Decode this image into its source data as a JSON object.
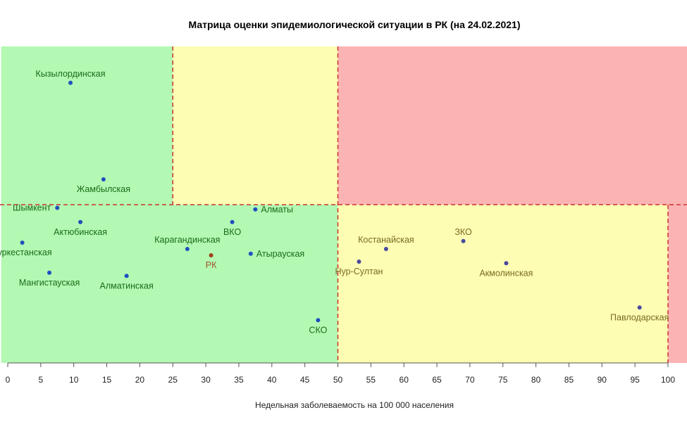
{
  "chart_data": {
    "type": "scatter",
    "title": "Матрица оценки эпидемиологической ситуации в РК (на 24.02.2021)",
    "xlabel": "Недельная заболеваемость на 100 000 населения",
    "ylabel": "",
    "xlim": [
      -1,
      103
    ],
    "ylim": [
      0,
      1
    ],
    "x_ticks": [
      "0",
      "5",
      "10",
      "15",
      "20",
      "25",
      "30",
      "35",
      "40",
      "45",
      "50",
      "55",
      "60",
      "65",
      "70",
      "75",
      "80",
      "85",
      "90",
      "95",
      "100"
    ],
    "grid": false,
    "x_thresholds": [
      25,
      50,
      100
    ],
    "y_threshold": 0.5,
    "zone_colors": {
      "green": "#b3f9b3",
      "yellow": "#fdfdb3",
      "red": "#fbb3b3",
      "threshold_line": "#cc3333"
    },
    "zones": [
      {
        "color": "green",
        "x": [
          -1,
          25
        ],
        "y": [
          0.5,
          1
        ]
      },
      {
        "color": "yellow",
        "x": [
          25,
          50
        ],
        "y": [
          0.5,
          1
        ]
      },
      {
        "color": "red",
        "x": [
          50,
          103
        ],
        "y": [
          0.5,
          1
        ]
      },
      {
        "color": "green",
        "x": [
          -1,
          50
        ],
        "y": [
          0,
          0.5
        ]
      },
      {
        "color": "yellow",
        "x": [
          50,
          100
        ],
        "y": [
          0,
          0.5
        ]
      },
      {
        "color": "red",
        "x": [
          100,
          103
        ],
        "y": [
          0,
          0.5
        ]
      }
    ],
    "points": [
      {
        "name": "Кызылординская",
        "x": 9.5,
        "y": 0.885,
        "color": "#1f4fbf",
        "label_color": "#1a6b1a",
        "label_pos": "above"
      },
      {
        "name": "Жамбылская",
        "x": 14.5,
        "y": 0.58,
        "color": "#1f4fbf",
        "label_color": "#1a6b1a",
        "label_pos": "below"
      },
      {
        "name": "Шымкент",
        "x": 7.5,
        "y": 0.49,
        "color": "#1f4fbf",
        "label_color": "#1a6b1a",
        "label_pos": "left"
      },
      {
        "name": "Актюбинская",
        "x": 11,
        "y": 0.445,
        "color": "#1f4fbf",
        "label_color": "#1a6b1a",
        "label_pos": "below"
      },
      {
        "name": "Туркестанская",
        "x": 2.2,
        "y": 0.38,
        "color": "#1f4fbf",
        "label_color": "#1a6b1a",
        "label_pos": "below"
      },
      {
        "name": "Мангистауская",
        "x": 6.3,
        "y": 0.285,
        "color": "#1f4fbf",
        "label_color": "#1a6b1a",
        "label_pos": "below"
      },
      {
        "name": "Алматинская",
        "x": 18,
        "y": 0.275,
        "color": "#1f4fbf",
        "label_color": "#1a6b1a",
        "label_pos": "below"
      },
      {
        "name": "Карагандинская",
        "x": 27.2,
        "y": 0.36,
        "color": "#1f4fbf",
        "label_color": "#1a6b1a",
        "label_pos": "above"
      },
      {
        "name": "РК",
        "x": 30.8,
        "y": 0.34,
        "color": "#a04020",
        "label_color": "#a0522d",
        "label_pos": "below"
      },
      {
        "name": "ВКО",
        "x": 34,
        "y": 0.445,
        "color": "#1f4fbf",
        "label_color": "#1a6b1a",
        "label_pos": "below"
      },
      {
        "name": "Алматы",
        "x": 37.5,
        "y": 0.485,
        "color": "#1f4fbf",
        "label_color": "#1a6b1a",
        "label_pos": "right"
      },
      {
        "name": "Атырауская",
        "x": 36.8,
        "y": 0.345,
        "color": "#1f4fbf",
        "label_color": "#1a6b1a",
        "label_pos": "right"
      },
      {
        "name": "СКО",
        "x": 47,
        "y": 0.135,
        "color": "#1f4fbf",
        "label_color": "#1a6b1a",
        "label_pos": "below"
      },
      {
        "name": "Нур-Султан",
        "x": 53.2,
        "y": 0.32,
        "color": "#4a4aa0",
        "label_color": "#7a6a20",
        "label_pos": "below"
      },
      {
        "name": "Костанайская",
        "x": 57.3,
        "y": 0.36,
        "color": "#4a4aa0",
        "label_color": "#7a6a20",
        "label_pos": "above"
      },
      {
        "name": "ЗКО",
        "x": 69,
        "y": 0.385,
        "color": "#4a4aa0",
        "label_color": "#7a6a20",
        "label_pos": "above"
      },
      {
        "name": "Акмолинская",
        "x": 75.5,
        "y": 0.315,
        "color": "#4a4aa0",
        "label_color": "#7a6a20",
        "label_pos": "below"
      },
      {
        "name": "Павлодарская",
        "x": 95.7,
        "y": 0.175,
        "color": "#4a4aa0",
        "label_color": "#7a6a20",
        "label_pos": "below"
      }
    ]
  }
}
